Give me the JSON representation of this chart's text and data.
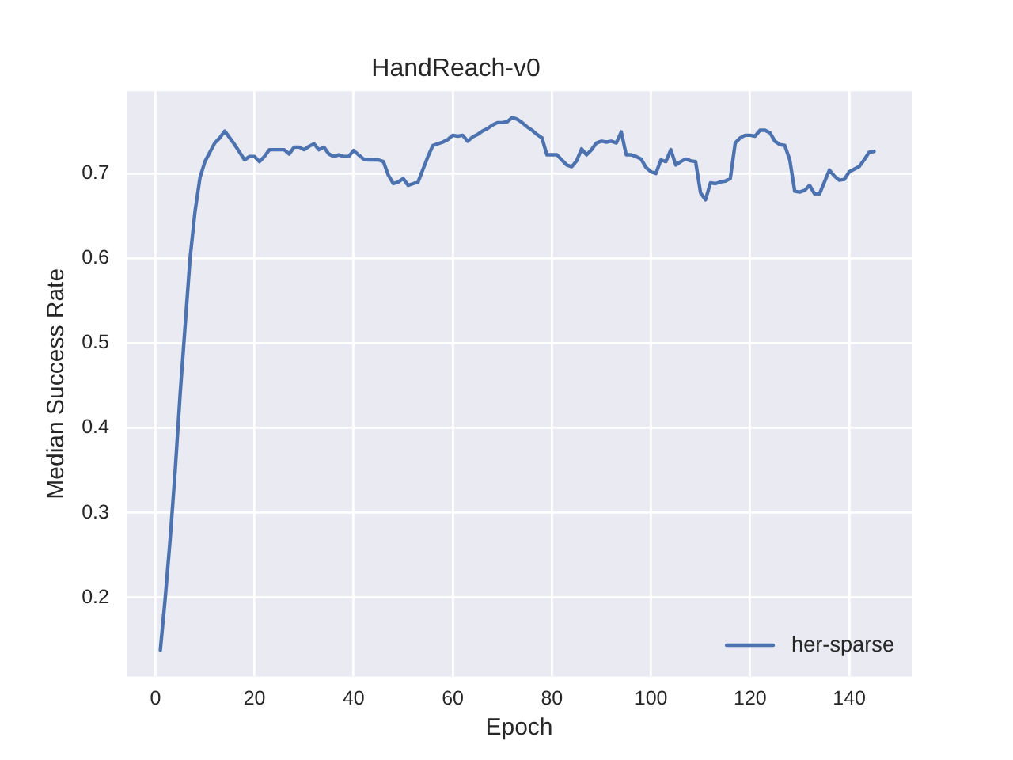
{
  "chart_data": {
    "type": "line",
    "title": "HandReach-v0",
    "xlabel": "Epoch",
    "ylabel": "Median Success Rate",
    "x": [
      1,
      2,
      3,
      4,
      5,
      6,
      7,
      8,
      9,
      10,
      11,
      12,
      13,
      14,
      15,
      16,
      17,
      18,
      19,
      20,
      21,
      22,
      23,
      24,
      25,
      26,
      27,
      28,
      29,
      30,
      31,
      32,
      33,
      34,
      35,
      36,
      37,
      38,
      39,
      40,
      41,
      42,
      43,
      44,
      45,
      46,
      47,
      48,
      49,
      50,
      51,
      52,
      53,
      54,
      55,
      56,
      57,
      58,
      59,
      60,
      61,
      62,
      63,
      64,
      65,
      66,
      67,
      68,
      69,
      70,
      71,
      72,
      73,
      74,
      75,
      76,
      77,
      78,
      79,
      80,
      81,
      82,
      83,
      84,
      85,
      86,
      87,
      88,
      89,
      90,
      91,
      92,
      93,
      94,
      95,
      96,
      97,
      98,
      99,
      100,
      101,
      102,
      103,
      104,
      105,
      106,
      107,
      108,
      109,
      110,
      111,
      112,
      113,
      114,
      115,
      116,
      117,
      118,
      119,
      120,
      121,
      122,
      123,
      124,
      125,
      126,
      127,
      128,
      129,
      130,
      131,
      132,
      133,
      134,
      135,
      136,
      137,
      138,
      139,
      140,
      141,
      142,
      143,
      144,
      145
    ],
    "series": [
      {
        "name": "her-sparse",
        "color": "#4c72b0",
        "values": [
          0.138,
          0.2,
          0.27,
          0.35,
          0.44,
          0.52,
          0.6,
          0.655,
          0.695,
          0.714,
          0.725,
          0.736,
          0.742,
          0.75,
          0.742,
          0.734,
          0.725,
          0.716,
          0.72,
          0.72,
          0.714,
          0.72,
          0.728,
          0.728,
          0.728,
          0.728,
          0.723,
          0.731,
          0.731,
          0.728,
          0.732,
          0.735,
          0.728,
          0.731,
          0.723,
          0.72,
          0.722,
          0.72,
          0.72,
          0.727,
          0.722,
          0.717,
          0.716,
          0.716,
          0.716,
          0.714,
          0.698,
          0.688,
          0.69,
          0.694,
          0.686,
          0.688,
          0.69,
          0.705,
          0.72,
          0.733,
          0.735,
          0.737,
          0.74,
          0.745,
          0.744,
          0.745,
          0.738,
          0.743,
          0.746,
          0.75,
          0.753,
          0.757,
          0.76,
          0.76,
          0.761,
          0.766,
          0.764,
          0.76,
          0.755,
          0.751,
          0.746,
          0.742,
          0.722,
          0.722,
          0.722,
          0.716,
          0.71,
          0.708,
          0.715,
          0.729,
          0.722,
          0.728,
          0.736,
          0.738,
          0.737,
          0.738,
          0.736,
          0.749,
          0.722,
          0.722,
          0.72,
          0.717,
          0.707,
          0.702,
          0.7,
          0.716,
          0.714,
          0.728,
          0.71,
          0.714,
          0.717,
          0.715,
          0.714,
          0.677,
          0.669,
          0.689,
          0.688,
          0.69,
          0.691,
          0.694,
          0.736,
          0.742,
          0.745,
          0.745,
          0.744,
          0.751,
          0.751,
          0.748,
          0.738,
          0.734,
          0.733,
          0.716,
          0.679,
          0.678,
          0.68,
          0.686,
          0.676,
          0.676,
          0.69,
          0.704,
          0.697,
          0.692,
          0.693,
          0.702,
          0.705,
          0.708,
          0.716,
          0.725,
          0.726
        ]
      }
    ],
    "xlim": [
      -5.8,
      152.6
    ],
    "xticks": [
      0,
      20,
      40,
      60,
      80,
      100,
      120,
      140
    ],
    "ylim": [
      0.107,
      0.797
    ],
    "yticks": [
      0.2,
      0.3,
      0.4,
      0.5,
      0.6,
      0.7
    ],
    "grid": true,
    "legend": "bottom right",
    "marker": "none",
    "line_style": "solid"
  }
}
